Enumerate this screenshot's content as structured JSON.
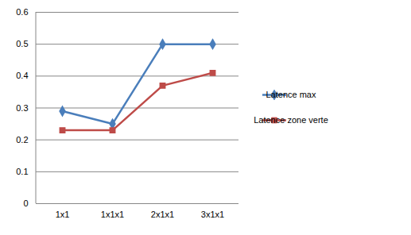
{
  "chart_data": {
    "type": "line",
    "categories": [
      "1x1",
      "1x1x1",
      "2x1x1",
      "3x1x1"
    ],
    "series": [
      {
        "name": "Latence max",
        "color": "#4a7ebb",
        "marker": "diamond",
        "values": [
          0.29,
          0.25,
          0.5,
          0.5
        ]
      },
      {
        "name": "Latence zone verte",
        "color": "#be4b48",
        "marker": "square",
        "values": [
          0.23,
          0.23,
          0.37,
          0.41
        ]
      }
    ],
    "ylim": [
      0,
      0.6
    ],
    "yticks": [
      0,
      0.1,
      0.2,
      0.3,
      0.4,
      0.5,
      0.6
    ],
    "grid": true,
    "legend": "right"
  }
}
